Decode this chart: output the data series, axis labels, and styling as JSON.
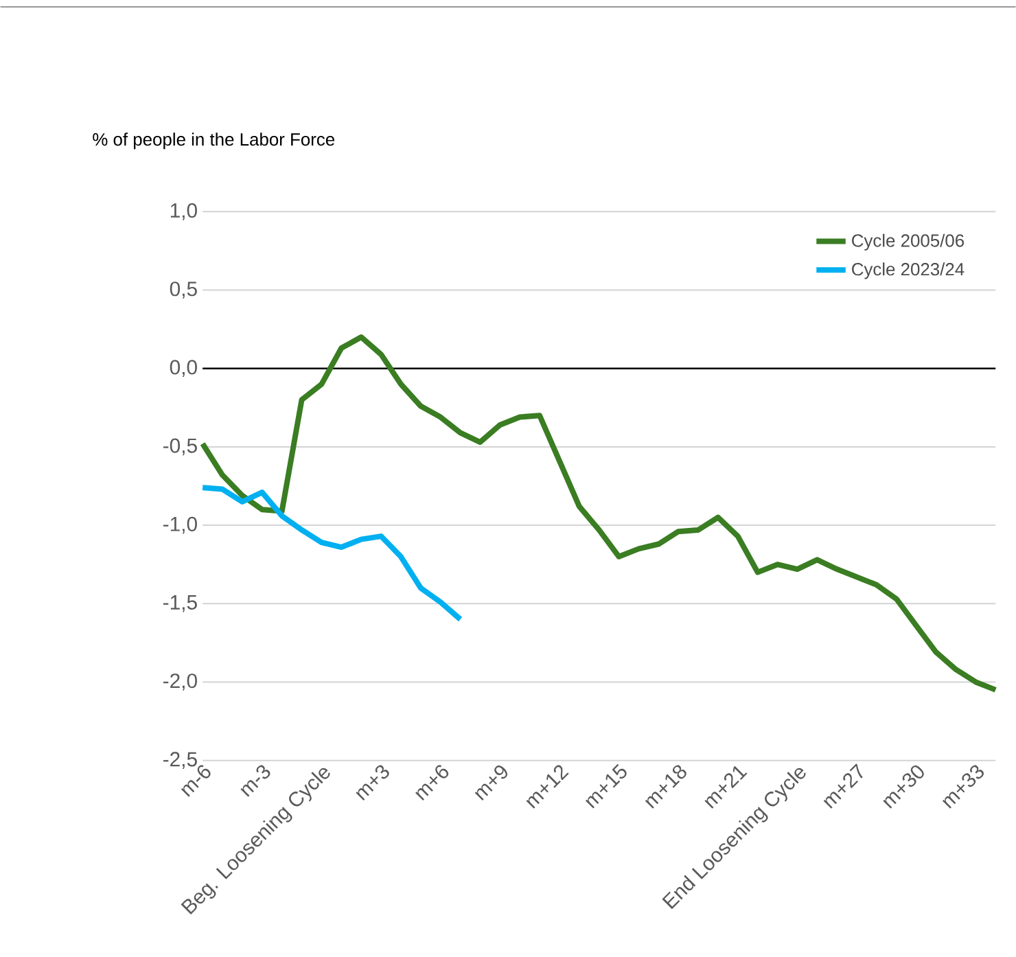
{
  "chart_data": {
    "type": "line",
    "ylabel": "% of people in the Labor Force",
    "categories": [
      "m-6",
      null,
      null,
      "m-3",
      null,
      null,
      "Beg. Loosening Cycle",
      null,
      null,
      "m+3",
      null,
      null,
      "m+6",
      null,
      null,
      "m+9",
      null,
      null,
      "m+12",
      null,
      null,
      "m+15",
      null,
      null,
      "m+18",
      null,
      null,
      "m+21",
      null,
      null,
      "End Loosening Cycle",
      null,
      null,
      "m+27",
      null,
      null,
      "m+30",
      null,
      null,
      "m+33",
      null
    ],
    "series": [
      {
        "name": "Cycle 2005/06",
        "color": "#3a7d22",
        "values": [
          -0.48,
          -0.68,
          -0.81,
          -0.9,
          -0.91,
          -0.2,
          -0.1,
          0.13,
          0.2,
          0.09,
          -0.1,
          -0.24,
          -0.31,
          -0.41,
          -0.47,
          -0.36,
          -0.31,
          -0.3,
          -0.59,
          -0.88,
          -1.03,
          -1.2,
          -1.15,
          -1.12,
          -1.04,
          -1.03,
          -0.95,
          -1.07,
          -1.3,
          -1.25,
          -1.28,
          -1.22,
          -1.28,
          -1.33,
          -1.38,
          -1.47,
          -1.64,
          -1.81,
          -1.92,
          -2.0,
          -2.05
        ]
      },
      {
        "name": "Cycle 2023/24",
        "color": "#00b0f0",
        "values": [
          -0.76,
          -0.77,
          -0.85,
          -0.79,
          -0.94,
          -1.03,
          -1.11,
          -1.14,
          -1.09,
          -1.07,
          -1.2,
          -1.4,
          -1.49,
          -1.6,
          null,
          null,
          null,
          null,
          null,
          null,
          null,
          null,
          null,
          null,
          null,
          null,
          null,
          null,
          null,
          null,
          null,
          null,
          null,
          null,
          null,
          null,
          null,
          null,
          null,
          null,
          null
        ]
      }
    ],
    "ylim": [
      -2.5,
      1.0
    ],
    "yticks": [
      {
        "value": -2.5,
        "label": "-2,5"
      },
      {
        "value": -2.0,
        "label": "-2,0"
      },
      {
        "value": -1.5,
        "label": "-1,5"
      },
      {
        "value": -1.0,
        "label": "-1,0"
      },
      {
        "value": -0.5,
        "label": "-0,5"
      },
      {
        "value": 0.0,
        "label": "0,0"
      },
      {
        "value": 0.5,
        "label": "0,5"
      },
      {
        "value": 1.0,
        "label": "1,0"
      }
    ],
    "ref_lines": [
      {
        "axis": "y",
        "value": 0,
        "color": "#000000"
      }
    ],
    "grid": "y",
    "legend": "top right",
    "marker": "none",
    "line_style": "solid"
  }
}
